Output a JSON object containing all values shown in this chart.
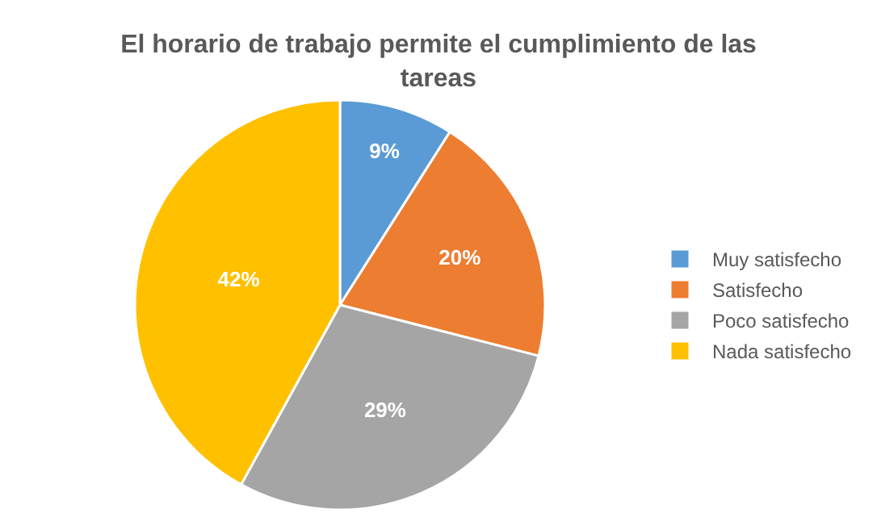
{
  "chart_data": {
    "type": "pie",
    "title": "El horario de trabajo permite el cumplimiento de las tareas",
    "categories": [
      "Muy satisfecho",
      "Satisfecho",
      "Poco satisfecho",
      "Nada satisfecho"
    ],
    "values": [
      9,
      20,
      29,
      42
    ],
    "value_labels": [
      "9%",
      "20%",
      "29%",
      "42%"
    ],
    "colors": [
      "#5b9bd5",
      "#ed7d31",
      "#a5a5a5",
      "#ffc000"
    ],
    "legend": "right"
  }
}
